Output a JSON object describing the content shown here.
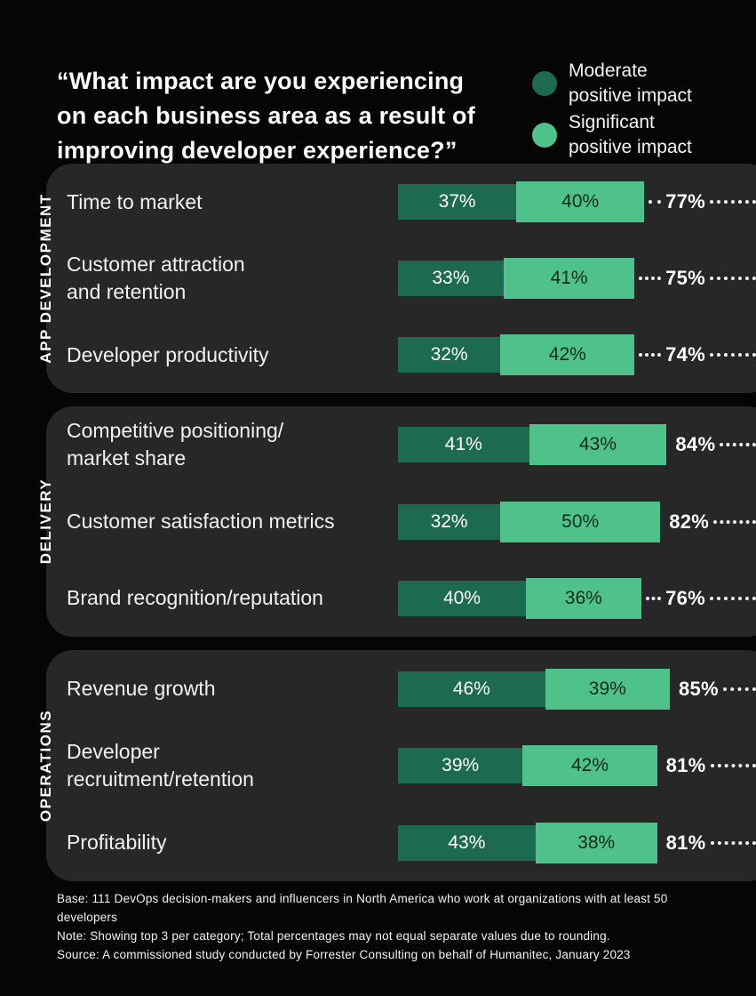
{
  "title_lines": [
    "“What impact are you experiencing",
    "on each business area as a result of",
    "improving developer experience?”"
  ],
  "legend": {
    "items": [
      {
        "line1": "Moderate",
        "line2": "positive impact",
        "color": "#1c6a4f"
      },
      {
        "line1": "Significant",
        "line2": "positive impact",
        "color": "#4fc28c"
      }
    ]
  },
  "chart_data": {
    "type": "bar",
    "orientation": "horizontal",
    "stacked": true,
    "unit": "percent",
    "series": [
      "Moderate positive impact",
      "Significant positive impact"
    ],
    "colors": {
      "moderate": "#1c6a4f",
      "significant": "#4fc28c",
      "moderate_text": "#ffffff",
      "significant_text": "#10291d",
      "total_text": "#ffffff",
      "card_background": "#272727",
      "page_background": "#050505"
    },
    "sections": [
      {
        "label": "APP DEVELOPMENT",
        "rows": [
          {
            "label_lines": [
              "Time to market"
            ],
            "moderate": 37,
            "significant": 40,
            "total": 77
          },
          {
            "label_lines": [
              "Customer attraction",
              "and retention"
            ],
            "moderate": 33,
            "significant": 41,
            "total": 75
          },
          {
            "label_lines": [
              "Developer productivity"
            ],
            "moderate": 32,
            "significant": 42,
            "total": 74
          }
        ]
      },
      {
        "label": "DELIVERY",
        "rows": [
          {
            "label_lines": [
              "Competitive positioning/",
              "market share"
            ],
            "moderate": 41,
            "significant": 43,
            "total": 84
          },
          {
            "label_lines": [
              "Customer satisfaction metrics"
            ],
            "moderate": 32,
            "significant": 50,
            "total": 82
          },
          {
            "label_lines": [
              "Brand recognition/reputation"
            ],
            "moderate": 40,
            "significant": 36,
            "total": 76
          }
        ]
      },
      {
        "label": "OPERATIONS",
        "rows": [
          {
            "label_lines": [
              "Revenue growth"
            ],
            "moderate": 46,
            "significant": 39,
            "total": 85
          },
          {
            "label_lines": [
              "Developer",
              "recruitment/retention"
            ],
            "moderate": 39,
            "significant": 42,
            "total": 81
          },
          {
            "label_lines": [
              "Profitability"
            ],
            "moderate": 43,
            "significant": 38,
            "total": 81
          }
        ]
      }
    ]
  },
  "footer": {
    "base": "Base: 111 DevOps decision-makers and influencers in North America who work at organizations with at least 50 developers",
    "note": "Note: Showing top 3 per category; Total percentages may not equal separate values due to rounding.",
    "source": "Source: A commissioned study conducted by Forrester Consulting on behalf of Humanitec, January 2023"
  }
}
